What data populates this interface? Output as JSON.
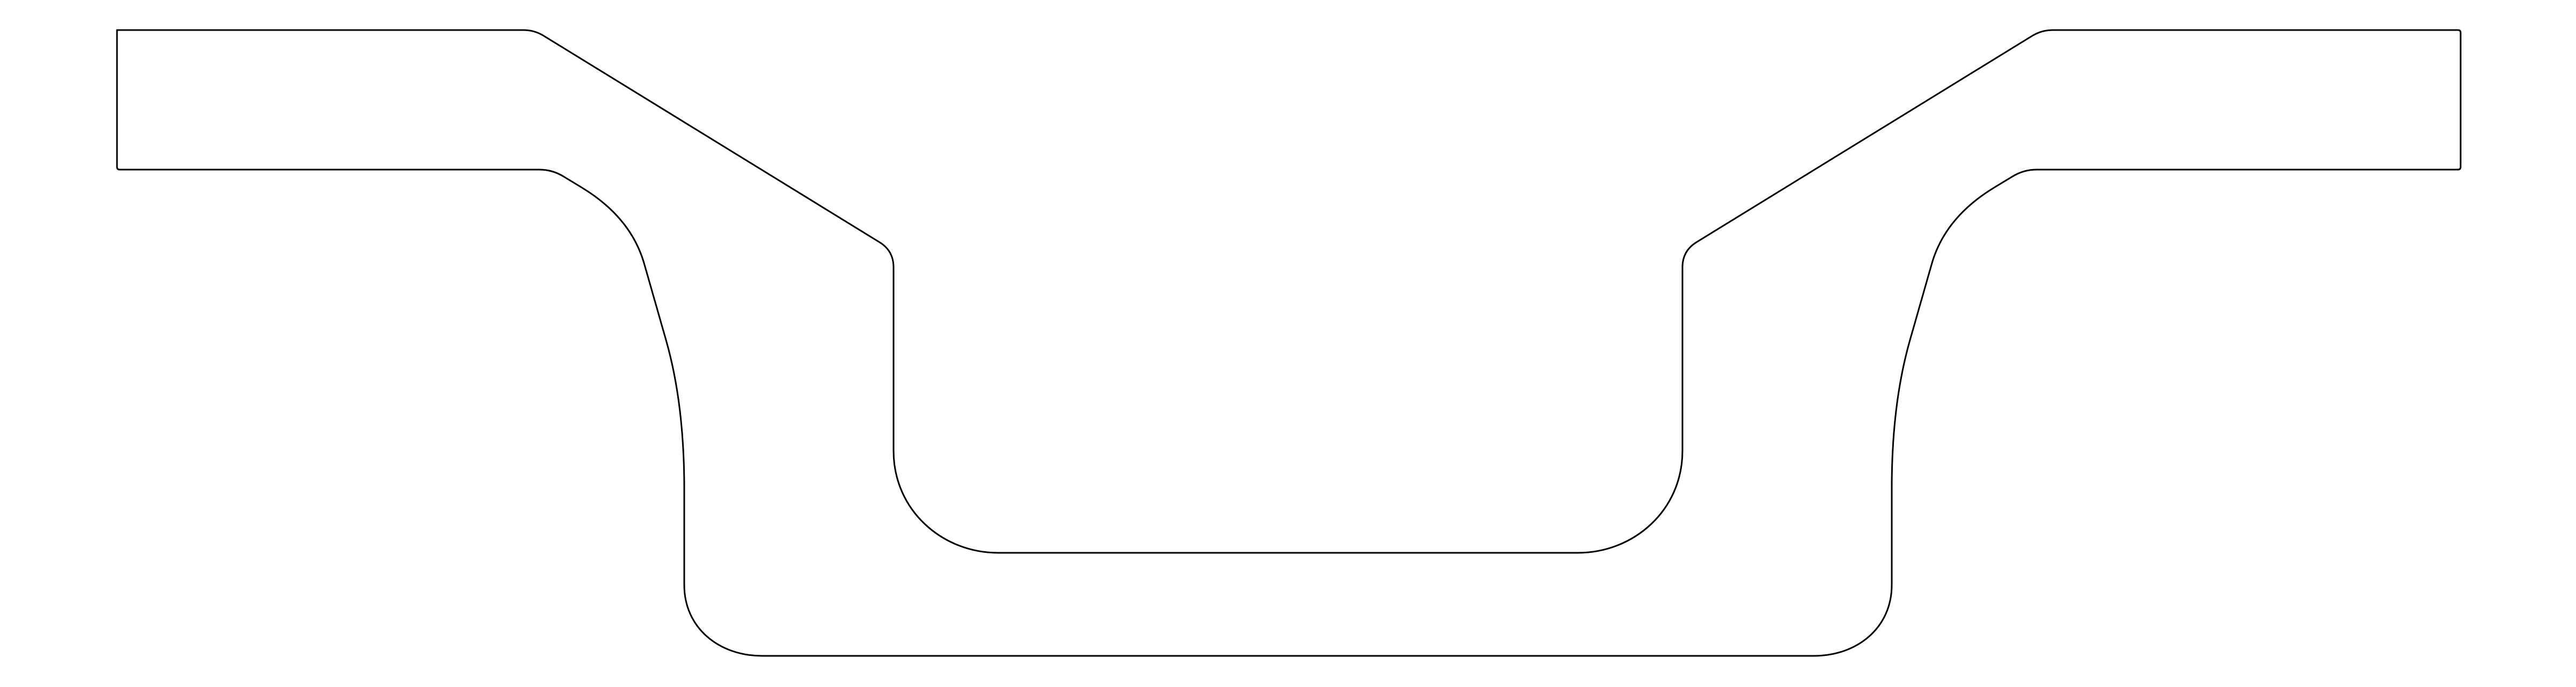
{
  "drawing": {
    "kind": "cross-section profile outline",
    "stroke_color": "#000000",
    "background_color": "#ffffff",
    "labels": []
  }
}
